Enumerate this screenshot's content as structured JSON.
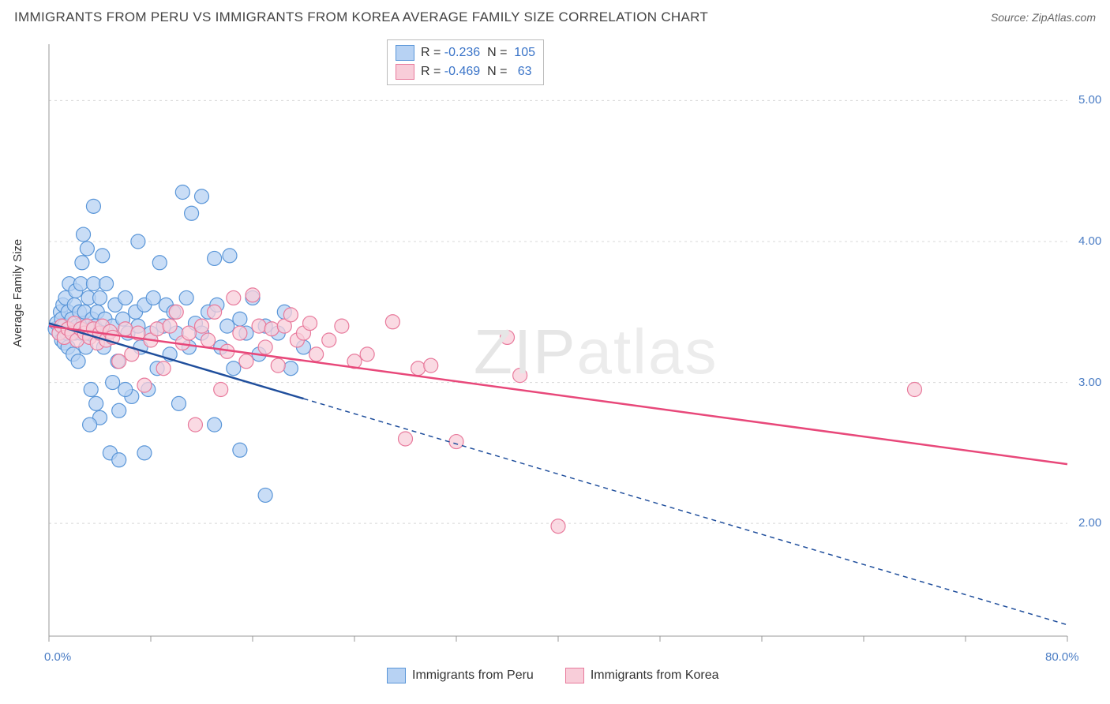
{
  "title": "IMMIGRANTS FROM PERU VS IMMIGRANTS FROM KOREA AVERAGE FAMILY SIZE CORRELATION CHART",
  "source_label": "Source: ",
  "source_name": "ZipAtlas.com",
  "ylabel": "Average Family Size",
  "watermark": {
    "a": "ZIP",
    "b": "atlas"
  },
  "chart": {
    "type": "scatter",
    "background_color": "#ffffff",
    "grid_color": "#d8d8d8",
    "axis_color": "#999999",
    "xlim": [
      0,
      80
    ],
    "ylim": [
      1.2,
      5.4
    ],
    "x_ticks_minor_step": 8,
    "y_gridlines": [
      2.0,
      3.0,
      4.0,
      5.0
    ],
    "x_tick_labels": {
      "min": "0.0%",
      "max": "80.0%"
    },
    "y_tick_labels": [
      "2.00",
      "3.00",
      "4.00",
      "5.00"
    ],
    "tick_label_color": "#4a7cc4",
    "marker_radius": 9,
    "marker_stroke_width": 1.2,
    "line_width": 2.5,
    "dash_pattern": "6 5"
  },
  "series": {
    "peru": {
      "label": "Immigrants from Peru",
      "fill": "#b7d2f3",
      "stroke": "#5a96d8",
      "line_color": "#1f4e9c",
      "R": "-0.236",
      "N": "105",
      "regression": {
        "x1": 0,
        "y1": 3.42,
        "x2": 80,
        "y2": 1.28
      },
      "solid_cutoff_x": 20,
      "points": [
        [
          0.5,
          3.38
        ],
        [
          0.6,
          3.42
        ],
        [
          0.8,
          3.35
        ],
        [
          0.9,
          3.5
        ],
        [
          1.0,
          3.3
        ],
        [
          1.0,
          3.45
        ],
        [
          1.1,
          3.55
        ],
        [
          1.2,
          3.28
        ],
        [
          1.2,
          3.4
        ],
        [
          1.3,
          3.6
        ],
        [
          1.4,
          3.35
        ],
        [
          1.5,
          3.25
        ],
        [
          1.5,
          3.5
        ],
        [
          1.6,
          3.7
        ],
        [
          1.7,
          3.38
        ],
        [
          1.8,
          3.45
        ],
        [
          1.9,
          3.2
        ],
        [
          2.0,
          3.55
        ],
        [
          2.0,
          3.35
        ],
        [
          2.1,
          3.65
        ],
        [
          2.2,
          3.4
        ],
        [
          2.3,
          3.15
        ],
        [
          2.4,
          3.5
        ],
        [
          2.5,
          3.7
        ],
        [
          2.5,
          3.35
        ],
        [
          2.6,
          3.85
        ],
        [
          2.7,
          3.42
        ],
        [
          2.7,
          4.05
        ],
        [
          2.8,
          3.5
        ],
        [
          2.9,
          3.25
        ],
        [
          3.0,
          3.95
        ],
        [
          3.0,
          3.4
        ],
        [
          3.1,
          3.6
        ],
        [
          3.2,
          3.35
        ],
        [
          3.3,
          2.95
        ],
        [
          3.4,
          3.45
        ],
        [
          3.5,
          3.7
        ],
        [
          3.5,
          4.25
        ],
        [
          3.6,
          3.4
        ],
        [
          3.7,
          2.85
        ],
        [
          3.8,
          3.5
        ],
        [
          3.9,
          3.35
        ],
        [
          4.0,
          2.75
        ],
        [
          4.0,
          3.6
        ],
        [
          4.2,
          3.9
        ],
        [
          4.3,
          3.25
        ],
        [
          4.4,
          3.45
        ],
        [
          4.5,
          3.7
        ],
        [
          4.6,
          3.35
        ],
        [
          4.8,
          2.5
        ],
        [
          5.0,
          3.0
        ],
        [
          5.0,
          3.4
        ],
        [
          5.2,
          3.55
        ],
        [
          5.4,
          3.15
        ],
        [
          5.5,
          2.8
        ],
        [
          5.8,
          3.45
        ],
        [
          6.0,
          3.6
        ],
        [
          6.2,
          3.35
        ],
        [
          6.5,
          2.9
        ],
        [
          6.8,
          3.5
        ],
        [
          7.0,
          3.4
        ],
        [
          7.0,
          4.0
        ],
        [
          7.2,
          3.25
        ],
        [
          7.5,
          3.55
        ],
        [
          7.8,
          2.95
        ],
        [
          8.0,
          3.35
        ],
        [
          8.2,
          3.6
        ],
        [
          8.5,
          3.1
        ],
        [
          8.7,
          3.85
        ],
        [
          9.0,
          3.4
        ],
        [
          9.2,
          3.55
        ],
        [
          9.5,
          3.2
        ],
        [
          9.8,
          3.5
        ],
        [
          10.0,
          3.35
        ],
        [
          10.2,
          2.85
        ],
        [
          10.5,
          4.35
        ],
        [
          10.8,
          3.6
        ],
        [
          11.0,
          3.25
        ],
        [
          11.2,
          4.2
        ],
        [
          11.5,
          3.42
        ],
        [
          12.0,
          4.32
        ],
        [
          12.0,
          3.35
        ],
        [
          12.5,
          3.5
        ],
        [
          13.0,
          2.7
        ],
        [
          13.0,
          3.88
        ],
        [
          13.2,
          3.55
        ],
        [
          13.5,
          3.25
        ],
        [
          14.0,
          3.4
        ],
        [
          14.2,
          3.9
        ],
        [
          14.5,
          3.1
        ],
        [
          15.0,
          2.52
        ],
        [
          15.0,
          3.45
        ],
        [
          15.5,
          3.35
        ],
        [
          16.0,
          3.6
        ],
        [
          16.5,
          3.2
        ],
        [
          17.0,
          2.2
        ],
        [
          17.0,
          3.4
        ],
        [
          18.0,
          3.35
        ],
        [
          18.5,
          3.5
        ],
        [
          19.0,
          3.1
        ],
        [
          20.0,
          3.25
        ],
        [
          5.5,
          2.45
        ],
        [
          7.5,
          2.5
        ],
        [
          3.2,
          2.7
        ],
        [
          6.0,
          2.95
        ]
      ]
    },
    "korea": {
      "label": "Immigrants from Korea",
      "fill": "#f8cdd9",
      "stroke": "#e87a9c",
      "line_color": "#e8487a",
      "R": "-0.469",
      "N": "63",
      "regression": {
        "x1": 0,
        "y1": 3.4,
        "x2": 80,
        "y2": 2.42
      },
      "solid_cutoff_x": 80,
      "points": [
        [
          0.8,
          3.35
        ],
        [
          1.0,
          3.4
        ],
        [
          1.2,
          3.32
        ],
        [
          1.5,
          3.38
        ],
        [
          1.8,
          3.35
        ],
        [
          2.0,
          3.42
        ],
        [
          2.2,
          3.3
        ],
        [
          2.5,
          3.38
        ],
        [
          2.8,
          3.35
        ],
        [
          3.0,
          3.4
        ],
        [
          3.2,
          3.32
        ],
        [
          3.5,
          3.38
        ],
        [
          3.8,
          3.28
        ],
        [
          4.0,
          3.35
        ],
        [
          4.2,
          3.4
        ],
        [
          4.5,
          3.3
        ],
        [
          4.8,
          3.36
        ],
        [
          5.0,
          3.32
        ],
        [
          5.5,
          3.15
        ],
        [
          6.0,
          3.38
        ],
        [
          6.5,
          3.2
        ],
        [
          7.0,
          3.35
        ],
        [
          7.5,
          2.98
        ],
        [
          8.0,
          3.3
        ],
        [
          8.5,
          3.38
        ],
        [
          9.0,
          3.1
        ],
        [
          9.5,
          3.4
        ],
        [
          10.0,
          3.5
        ],
        [
          10.5,
          3.28
        ],
        [
          11.0,
          3.35
        ],
        [
          11.5,
          2.7
        ],
        [
          12.0,
          3.4
        ],
        [
          12.5,
          3.3
        ],
        [
          13.0,
          3.5
        ],
        [
          13.5,
          2.95
        ],
        [
          14.0,
          3.22
        ],
        [
          14.5,
          3.6
        ],
        [
          15.0,
          3.35
        ],
        [
          15.5,
          3.15
        ],
        [
          16.0,
          3.62
        ],
        [
          16.5,
          3.4
        ],
        [
          17.0,
          3.25
        ],
        [
          17.5,
          3.38
        ],
        [
          18.0,
          3.12
        ],
        [
          18.5,
          3.4
        ],
        [
          19.0,
          3.48
        ],
        [
          19.5,
          3.3
        ],
        [
          20.0,
          3.35
        ],
        [
          20.5,
          3.42
        ],
        [
          21.0,
          3.2
        ],
        [
          22.0,
          3.3
        ],
        [
          23.0,
          3.4
        ],
        [
          24.0,
          3.15
        ],
        [
          25.0,
          3.2
        ],
        [
          27.0,
          3.43
        ],
        [
          28.0,
          2.6
        ],
        [
          29.0,
          3.1
        ],
        [
          30.0,
          3.12
        ],
        [
          32.0,
          2.58
        ],
        [
          36.0,
          3.32
        ],
        [
          40.0,
          1.98
        ],
        [
          37.0,
          3.05
        ],
        [
          68.0,
          2.95
        ]
      ]
    }
  }
}
